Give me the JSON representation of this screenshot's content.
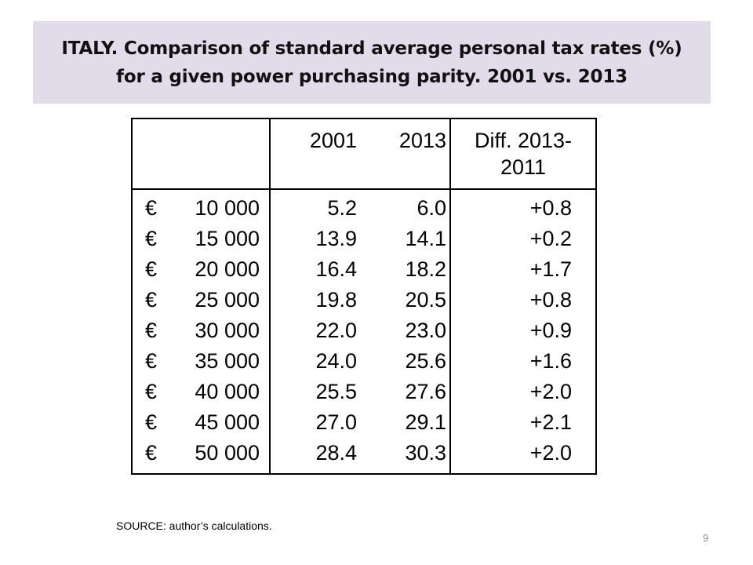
{
  "title": {
    "line1": "ITALY. Comparison of standard average personal tax rates (%)",
    "line2": "for a given power purchasing parity. 2001 vs. 2013"
  },
  "table": {
    "headers": [
      "",
      "2001",
      "2013",
      "Diff. 2013-",
      "2011"
    ],
    "rows": [
      {
        "currency": "€",
        "income": "10 000",
        "y2001": "5.2",
        "y2013": "6.0",
        "diff": "+0.8"
      },
      {
        "currency": "€",
        "income": "15 000",
        "y2001": "13.9",
        "y2013": "14.1",
        "diff": "+0.2"
      },
      {
        "currency": "€",
        "income": "20 000",
        "y2001": "16.4",
        "y2013": "18.2",
        "diff": "+1.7"
      },
      {
        "currency": "€",
        "income": "25 000",
        "y2001": "19.8",
        "y2013": "20.5",
        "diff": "+0.8"
      },
      {
        "currency": "€",
        "income": "30 000",
        "y2001": "22.0",
        "y2013": "23.0",
        "diff": "+0.9"
      },
      {
        "currency": "€",
        "income": "35 000",
        "y2001": "24.0",
        "y2013": "25.6",
        "diff": "+1.6"
      },
      {
        "currency": "€",
        "income": "40 000",
        "y2001": "25.5",
        "y2013": "27.6",
        "diff": "+2.0"
      },
      {
        "currency": "€",
        "income": "45 000",
        "y2001": "27.0",
        "y2013": "29.1",
        "diff": "+2.1"
      },
      {
        "currency": "€",
        "income": "50 000",
        "y2001": "28.4",
        "y2013": "30.3",
        "diff": "+2.0"
      }
    ]
  },
  "source": "SOURCE: author’s calculations.",
  "page_number": "9",
  "colors": {
    "title_band": "#e2dcea",
    "text": "#000000",
    "page_number": "#8a8a8a"
  }
}
